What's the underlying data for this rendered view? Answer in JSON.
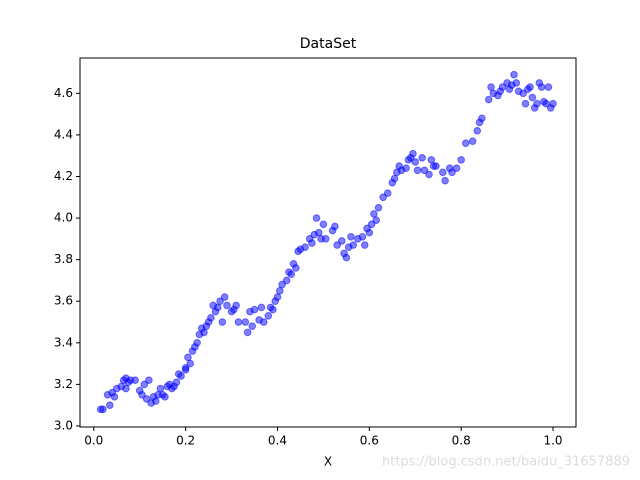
{
  "chart_data": {
    "type": "scatter",
    "title": "DataSet",
    "x_label": "X",
    "watermark": "https://blog.csdn.net/baidu_31657889",
    "series": [
      {
        "color": "blue",
        "x": [
          0.015,
          0.02,
          0.03,
          0.035,
          0.04,
          0.045,
          0.05,
          0.06,
          0.065,
          0.07,
          0.07,
          0.075,
          0.08,
          0.09,
          0.1,
          0.105,
          0.11,
          0.115,
          0.12,
          0.125,
          0.13,
          0.135,
          0.14,
          0.145,
          0.15,
          0.155,
          0.16,
          0.165,
          0.17,
          0.175,
          0.18,
          0.185,
          0.19,
          0.2,
          0.2,
          0.205,
          0.21,
          0.215,
          0.22,
          0.225,
          0.23,
          0.235,
          0.24,
          0.245,
          0.25,
          0.255,
          0.26,
          0.265,
          0.27,
          0.275,
          0.28,
          0.285,
          0.29,
          0.3,
          0.305,
          0.31,
          0.315,
          0.33,
          0.335,
          0.34,
          0.345,
          0.35,
          0.36,
          0.365,
          0.37,
          0.38,
          0.385,
          0.39,
          0.395,
          0.4,
          0.405,
          0.41,
          0.42,
          0.425,
          0.43,
          0.435,
          0.44,
          0.445,
          0.45,
          0.46,
          0.47,
          0.475,
          0.48,
          0.485,
          0.49,
          0.495,
          0.5,
          0.505,
          0.52,
          0.525,
          0.53,
          0.54,
          0.545,
          0.55,
          0.555,
          0.56,
          0.565,
          0.575,
          0.585,
          0.59,
          0.595,
          0.6,
          0.605,
          0.61,
          0.615,
          0.62,
          0.63,
          0.64,
          0.65,
          0.655,
          0.66,
          0.665,
          0.67,
          0.68,
          0.685,
          0.69,
          0.695,
          0.7,
          0.705,
          0.715,
          0.72,
          0.73,
          0.735,
          0.74,
          0.745,
          0.76,
          0.765,
          0.775,
          0.78,
          0.79,
          0.8,
          0.81,
          0.825,
          0.835,
          0.84,
          0.845,
          0.86,
          0.865,
          0.87,
          0.88,
          0.885,
          0.89,
          0.9,
          0.905,
          0.91,
          0.915,
          0.92,
          0.925,
          0.935,
          0.94,
          0.945,
          0.95,
          0.955,
          0.96,
          0.965,
          0.97,
          0.975,
          0.98,
          0.985,
          0.99,
          0.995,
          1.0
        ],
        "values": [
          3.08,
          3.08,
          3.15,
          3.1,
          3.16,
          3.14,
          3.18,
          3.19,
          3.22,
          3.18,
          3.23,
          3.21,
          3.22,
          3.22,
          3.17,
          3.15,
          3.2,
          3.13,
          3.22,
          3.11,
          3.14,
          3.12,
          3.15,
          3.18,
          3.15,
          3.14,
          3.19,
          3.2,
          3.18,
          3.19,
          3.21,
          3.25,
          3.24,
          3.28,
          3.27,
          3.33,
          3.3,
          3.36,
          3.38,
          3.4,
          3.44,
          3.47,
          3.45,
          3.48,
          3.5,
          3.52,
          3.58,
          3.55,
          3.57,
          3.6,
          3.5,
          3.62,
          3.58,
          3.55,
          3.56,
          3.58,
          3.5,
          3.5,
          3.45,
          3.55,
          3.48,
          3.56,
          3.51,
          3.57,
          3.5,
          3.53,
          3.57,
          3.56,
          3.6,
          3.62,
          3.65,
          3.68,
          3.7,
          3.74,
          3.73,
          3.78,
          3.76,
          3.84,
          3.85,
          3.86,
          3.9,
          3.88,
          3.92,
          4.0,
          3.93,
          3.9,
          3.97,
          3.9,
          3.94,
          3.96,
          3.87,
          3.89,
          3.83,
          3.81,
          3.86,
          3.91,
          3.87,
          3.9,
          3.91,
          3.87,
          3.95,
          3.93,
          3.97,
          4.02,
          3.99,
          4.05,
          4.1,
          4.12,
          4.17,
          4.19,
          4.22,
          4.25,
          4.23,
          4.24,
          4.28,
          4.29,
          4.31,
          4.27,
          4.23,
          4.29,
          4.23,
          4.21,
          4.28,
          4.25,
          4.25,
          4.22,
          4.18,
          4.24,
          4.22,
          4.24,
          4.28,
          4.36,
          4.37,
          4.42,
          4.46,
          4.48,
          4.57,
          4.63,
          4.6,
          4.59,
          4.61,
          4.63,
          4.65,
          4.62,
          4.64,
          4.69,
          4.65,
          4.61,
          4.6,
          4.55,
          4.62,
          4.63,
          4.58,
          4.53,
          4.55,
          4.65,
          4.63,
          4.56,
          4.55,
          4.63,
          4.53,
          4.55
        ]
      }
    ],
    "xlim": [
      -0.03,
      1.05
    ],
    "xticks": [
      {
        "value": 0,
        "label": "0.0"
      },
      0.2,
      0.4,
      0.6,
      0.8,
      {
        "value": 1,
        "label": "1.0"
      }
    ],
    "ylim": [
      2.995,
      4.77
    ],
    "yticks": [
      {
        "value": 3,
        "label": "3.0"
      },
      3.2,
      3.4,
      3.6,
      3.8,
      {
        "value": 4,
        "label": "4.0"
      },
      4.2,
      4.4,
      4.6
    ],
    "grid": false
  }
}
